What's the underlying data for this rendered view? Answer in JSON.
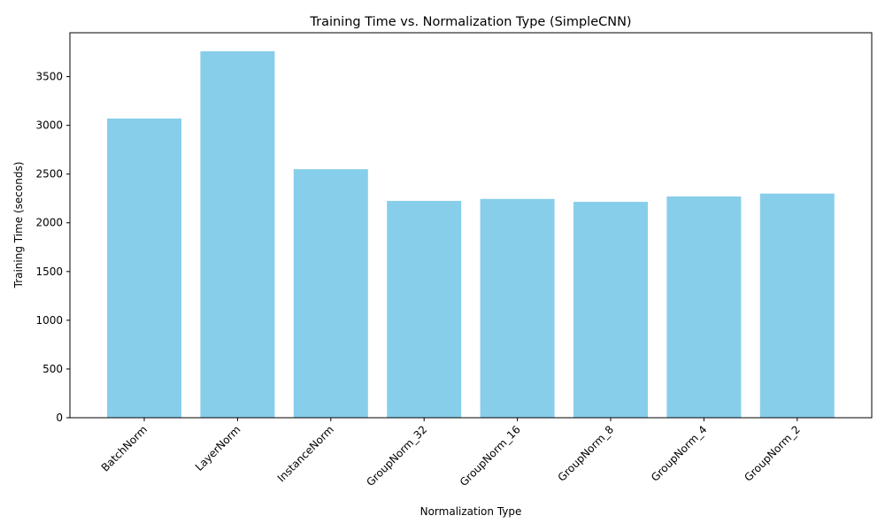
{
  "chart_data": {
    "type": "bar",
    "title": "Training Time vs. Normalization Type (SimpleCNN)",
    "xlabel": "Normalization Type",
    "ylabel": "Training Time (seconds)",
    "categories": [
      "BatchNorm",
      "LayerNorm",
      "InstanceNorm",
      "GroupNorm_32",
      "GroupNorm_16",
      "GroupNorm_8",
      "GroupNorm_4",
      "GroupNorm_2"
    ],
    "values": [
      3070,
      3760,
      2550,
      2225,
      2245,
      2215,
      2270,
      2300
    ],
    "ylim": [
      0,
      3950
    ],
    "yticks": [
      0,
      500,
      1000,
      1500,
      2000,
      2500,
      3000,
      3500
    ],
    "ytick_labels": [
      "0",
      "500",
      "1000",
      "1500",
      "2000",
      "2500",
      "3000",
      "3500"
    ],
    "bar_color": "#87ceeb",
    "grid": false,
    "legend": "none",
    "xtick_rotation_deg": 45
  }
}
